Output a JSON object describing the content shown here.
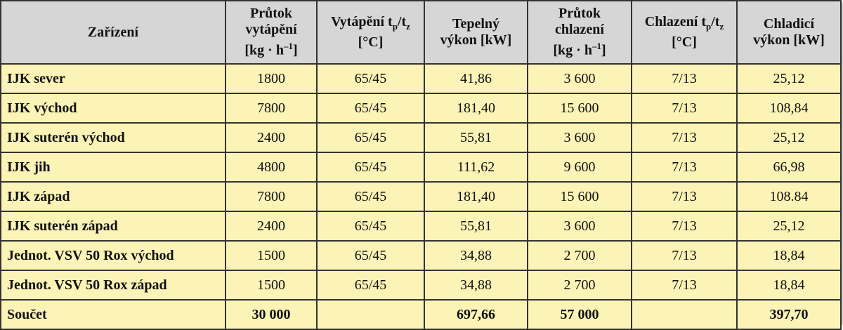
{
  "table": {
    "header": [
      [
        [
          "Zařízení"
        ]
      ],
      [
        [
          "Průtok"
        ],
        [
          "vytápění"
        ],
        [
          "[kg · h",
          {
            "sup": "–1"
          },
          "]"
        ]
      ],
      [
        [
          "Vytápění t",
          {
            "sub": "p"
          },
          "/t",
          {
            "sub": "z"
          }
        ],
        [
          "[°C]"
        ]
      ],
      [
        [
          "Tepelný"
        ],
        [
          "výkon [kW]"
        ]
      ],
      [
        [
          "Průtok"
        ],
        [
          "chlazení"
        ],
        [
          "[kg · h",
          {
            "sup": "–1"
          },
          "]"
        ]
      ],
      [
        [
          "Chlazení t",
          {
            "sub": "p"
          },
          "/t",
          {
            "sub": "z"
          }
        ],
        [
          "[°C]"
        ]
      ],
      [
        [
          "Chladicí"
        ],
        [
          "výkon [kW]"
        ]
      ]
    ],
    "rows": [
      [
        "IJK sever",
        "1800",
        "65/45",
        "41,86",
        "3 600",
        "7/13",
        "25,12"
      ],
      [
        "IJK východ",
        "7800",
        "65/45",
        "181,40",
        "15 600",
        "7/13",
        "108,84"
      ],
      [
        "IJK suterén východ",
        "2400",
        "65/45",
        "55,81",
        "3 600",
        "7/13",
        "25,12"
      ],
      [
        "IJK jih",
        "4800",
        "65/45",
        "111,62",
        "9 600",
        "7/13",
        "66,98"
      ],
      [
        "IJK západ",
        "7800",
        "65/45",
        "181,40",
        "15 600",
        "7/13",
        "108.84"
      ],
      [
        "IJK suterén západ",
        "2400",
        "65/45",
        "55,81",
        "3 600",
        "7/13",
        "25,12"
      ],
      [
        "Jednot. VSV 50 Rox východ",
        "1500",
        "65/45",
        "34,88",
        "2 700",
        "7/13",
        "18,84"
      ],
      [
        "Jednot. VSV 50 Rox západ",
        "1500",
        "65/45",
        "34,88",
        "2 700",
        "7/13",
        "18,84"
      ],
      [
        "Součet",
        "30 000",
        null,
        "697,66",
        "57 000",
        null,
        "397,70"
      ]
    ]
  }
}
